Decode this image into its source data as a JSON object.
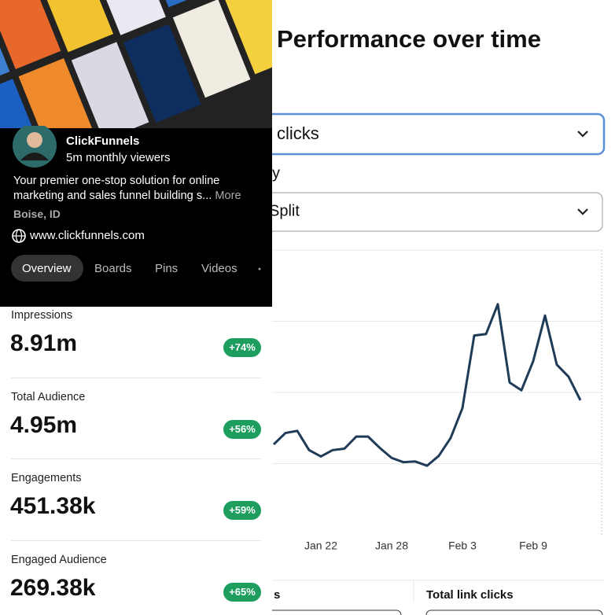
{
  "profile": {
    "name": "ClickFunnels",
    "viewers": "5m monthly viewers",
    "description": "Your premier one-stop solution for online marketing and sales funnel building s...",
    "more": "More",
    "location": "Boise, ID",
    "website": "www.clickfunnels.com",
    "tabs": [
      "Overview",
      "Boards",
      "Pins",
      "Videos"
    ]
  },
  "stats": [
    {
      "label": "Impressions",
      "value": "8.91m",
      "change": "+74%"
    },
    {
      "label": "Total Audience",
      "value": "4.95m",
      "change": "+56%"
    },
    {
      "label": "Engagements",
      "value": "451.38k",
      "change": "+59%"
    },
    {
      "label": "Engaged Audience",
      "value": "269.38k",
      "change": "+65%"
    }
  ],
  "performance": {
    "title": "Performance over time",
    "metric_select": "clicks",
    "split_label": "y",
    "split_select": "Split",
    "footer_left": "s",
    "footer_label": "Total link clicks"
  },
  "chart_data": {
    "type": "line",
    "categories": [
      null,
      null,
      null,
      null,
      "Jan 22",
      null,
      null,
      null,
      null,
      null,
      "Jan 28",
      null,
      null,
      null,
      null,
      null,
      "Feb 3",
      null,
      null,
      null,
      null,
      null,
      "Feb 9",
      null,
      null,
      null,
      null
    ],
    "series": [
      {
        "color": "#1f3b57",
        "values": [
          1.27,
          1.43,
          1.46,
          1.19,
          1.1,
          1.19,
          1.21,
          1.38,
          1.38,
          1.22,
          1.08,
          1.02,
          1.03,
          0.97,
          1.11,
          1.36,
          1.78,
          2.8,
          2.82,
          3.24,
          2.14,
          2.03,
          2.44,
          3.08,
          2.39,
          2.22,
          1.89
        ]
      }
    ],
    "ylim": [
      0,
      4
    ],
    "yticks": [
      1,
      2,
      3
    ],
    "grid": true
  }
}
